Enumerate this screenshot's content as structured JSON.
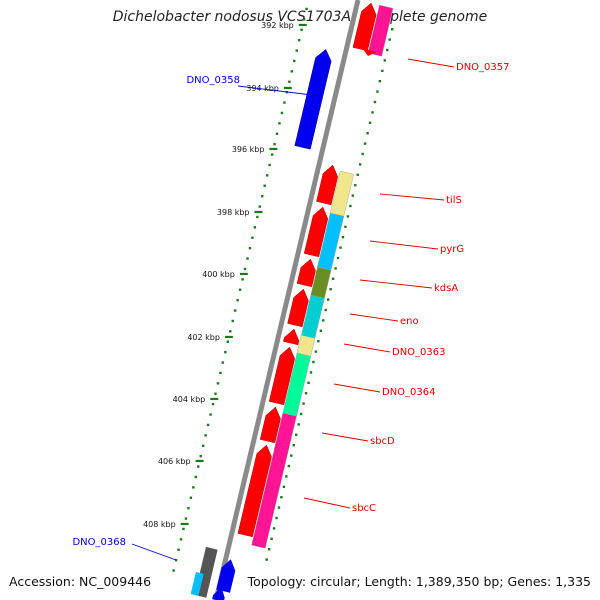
{
  "title": "Dichelobacter nodosus VCS1703A, complete genome",
  "footer": {
    "accession": "Accession: NC_009446",
    "stats": "Topology: circular; Length: 1,389,350 bp; Genes: 1,335"
  },
  "colors": {
    "forward_strand": "#0000ee",
    "reverse_strand": "#ff0000",
    "label_forward": "#0000cc",
    "label_reverse": "#dd0000",
    "backbone": "#888888",
    "tick": "#1a7a1a"
  },
  "ticks": [
    {
      "label": "392 kbp"
    },
    {
      "label": "394 kbp"
    },
    {
      "label": "396 kbp"
    },
    {
      "label": "398 kbp"
    },
    {
      "label": "400 kbp"
    },
    {
      "label": "402 kbp"
    },
    {
      "label": "404 kbp"
    },
    {
      "label": "406 kbp"
    },
    {
      "label": "408 kbp"
    }
  ],
  "genes": [
    {
      "name": "DNO_0357",
      "strand": "reverse",
      "color": "#ff1493"
    },
    {
      "name": "DNO_0358",
      "strand": "forward",
      "color": "#0000ee"
    },
    {
      "name": "tilS",
      "strand": "reverse",
      "color": "#f0e68c"
    },
    {
      "name": "pyrG",
      "strand": "reverse",
      "color": "#00bfff"
    },
    {
      "name": "kdsA",
      "strand": "reverse",
      "color": "#6b8e23"
    },
    {
      "name": "eno",
      "strand": "reverse",
      "color": "#00ced1"
    },
    {
      "name": "DNO_0363",
      "strand": "reverse",
      "color": "#f0e68c"
    },
    {
      "name": "DNO_0364",
      "strand": "reverse",
      "color": "#00fa9a"
    },
    {
      "name": "sbcD",
      "strand": "reverse",
      "color": "#ff1493"
    },
    {
      "name": "sbcC",
      "strand": "reverse",
      "color": "#ff1493"
    },
    {
      "name": "DNO_0368",
      "strand": "forward",
      "color": "#0000ee"
    }
  ]
}
